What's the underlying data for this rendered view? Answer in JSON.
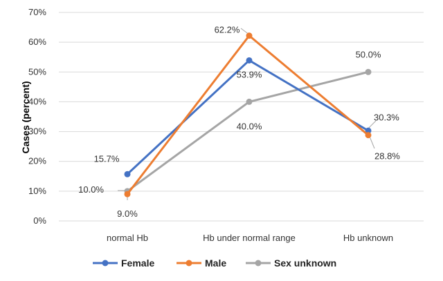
{
  "chart_data": {
    "type": "line",
    "ylabel": "Cases (percent)",
    "categories": [
      "normal Hb",
      "Hb under normal range",
      "Hb unknown"
    ],
    "ylim": [
      0,
      70
    ],
    "yticks": [
      0,
      10,
      20,
      30,
      40,
      50,
      60,
      70
    ],
    "ytick_labels": [
      "0%",
      "10%",
      "20%",
      "30%",
      "40%",
      "50%",
      "60%",
      "70%"
    ],
    "grid": "horizontal",
    "legend_position": "bottom",
    "series": [
      {
        "name": "Female",
        "color": "#4472c4",
        "values": [
          15.7,
          53.9,
          30.3
        ],
        "labels": [
          "15.7%",
          "53.9%",
          "30.3%"
        ]
      },
      {
        "name": "Male",
        "color": "#ed7d31",
        "values": [
          9.0,
          62.2,
          28.8
        ],
        "labels": [
          "9.0%",
          "62.2%",
          "28.8%"
        ]
      },
      {
        "name": "Sex unknown",
        "color": "#a5a5a5",
        "values": [
          10.0,
          40.0,
          50.0
        ],
        "labels": [
          "10.0%",
          "40.0%",
          "50.0%"
        ]
      }
    ]
  }
}
